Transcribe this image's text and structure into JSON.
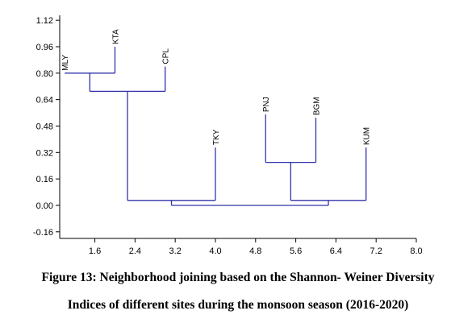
{
  "chart_data": {
    "type": "dendrogram",
    "x_ticks": [
      "1.6",
      "2.4",
      "3.2",
      "4.0",
      "4.8",
      "5.6",
      "6.4",
      "7.2",
      "8.0"
    ],
    "y_ticks": [
      "1.12",
      "0.96",
      "0.80",
      "0.64",
      "0.48",
      "0.32",
      "0.16",
      "0.00",
      "-0.16"
    ],
    "xlim": [
      0.9,
      8.0
    ],
    "ylim": [
      -0.2,
      1.15
    ],
    "leaves": [
      {
        "label": "MLY",
        "x": 1.0,
        "y": 0.8
      },
      {
        "label": "KTA",
        "x": 2.0,
        "y": 0.96
      },
      {
        "label": "CPL",
        "x": 3.0,
        "y": 0.84
      },
      {
        "label": "TKY",
        "x": 4.0,
        "y": 0.35
      },
      {
        "label": "PNJ",
        "x": 5.0,
        "y": 0.55
      },
      {
        "label": "BGM",
        "x": 6.0,
        "y": 0.53
      },
      {
        "label": "KUM",
        "x": 7.0,
        "y": 0.35
      }
    ],
    "segments": [
      [
        1.0,
        0.8,
        2.0,
        0.8
      ],
      [
        2.0,
        0.8,
        2.0,
        0.96
      ],
      [
        1.5,
        0.8,
        1.5,
        0.69
      ],
      [
        1.5,
        0.69,
        3.0,
        0.69
      ],
      [
        3.0,
        0.69,
        3.0,
        0.84
      ],
      [
        2.25,
        0.69,
        2.25,
        0.03
      ],
      [
        2.25,
        0.03,
        4.0,
        0.03
      ],
      [
        4.0,
        0.03,
        4.0,
        0.35
      ],
      [
        5.0,
        0.26,
        6.0,
        0.26
      ],
      [
        5.0,
        0.26,
        5.0,
        0.55
      ],
      [
        6.0,
        0.26,
        6.0,
        0.53
      ],
      [
        5.5,
        0.26,
        5.5,
        0.03
      ],
      [
        5.5,
        0.03,
        7.0,
        0.03
      ],
      [
        7.0,
        0.03,
        7.0,
        0.35
      ],
      [
        3.125,
        0.03,
        3.125,
        0.0
      ],
      [
        6.25,
        0.03,
        6.25,
        0.0
      ],
      [
        3.125,
        0.0,
        6.25,
        0.0
      ]
    ],
    "line_color": "#3333aa",
    "axis_color": "#000000",
    "grid": false
  },
  "caption": {
    "line1": "Figure 13: Neighborhood joining based on the Shannon- Weiner Diversity",
    "line2": "Indices of different sites during the monsoon season (2016-2020)"
  }
}
